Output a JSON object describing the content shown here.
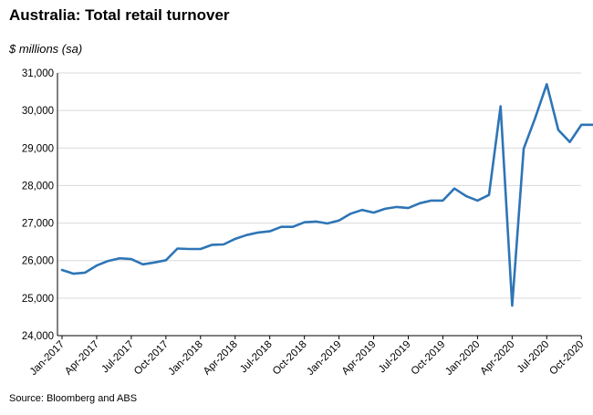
{
  "title": "Australia: Total retail turnover",
  "subtitle": "$ millions (sa)",
  "source": "Source: Bloomberg and ABS",
  "colors": {
    "line": "#2e75b6",
    "grid": "#d9d9d9",
    "axis": "#000000"
  },
  "chart_data": {
    "type": "line",
    "title": "Australia: Total retail turnover",
    "ylabel": "$ millions (sa)",
    "xlabel": "",
    "ylim": [
      24000,
      31000
    ],
    "yticks": [
      24000,
      25000,
      26000,
      27000,
      28000,
      29000,
      30000,
      31000
    ],
    "ytick_labels": [
      "24,000",
      "25,000",
      "26,000",
      "27,000",
      "28,000",
      "29,000",
      "30,000",
      "31,000"
    ],
    "x_tick_labels": [
      "Jan-2017",
      "Apr-2017",
      "Jul-2017",
      "Oct-2017",
      "Jan-2018",
      "Apr-2018",
      "Jul-2018",
      "Oct-2018",
      "Jan-2019",
      "Apr-2019",
      "Jul-2019",
      "Oct-2019",
      "Jan-2020",
      "Apr-2020",
      "Jul-2020",
      "Oct-2020"
    ],
    "grid": true,
    "legend": "none",
    "series": [
      {
        "x": [
          "Jan-2017",
          "Feb-2017",
          "Mar-2017",
          "Apr-2017",
          "May-2017",
          "Jun-2017",
          "Jul-2017",
          "Aug-2017",
          "Sep-2017",
          "Oct-2017",
          "Nov-2017",
          "Dec-2017",
          "Jan-2018",
          "Feb-2018",
          "Mar-2018",
          "Apr-2018",
          "May-2018",
          "Jun-2018",
          "Jul-2018",
          "Aug-2018",
          "Sep-2018",
          "Oct-2018",
          "Nov-2018",
          "Dec-2018",
          "Jan-2019",
          "Feb-2019",
          "Mar-2019",
          "Apr-2019",
          "May-2019",
          "Jun-2019",
          "Jul-2019",
          "Aug-2019",
          "Sep-2019",
          "Oct-2019",
          "Nov-2019",
          "Dec-2019",
          "Jan-2020",
          "Feb-2020",
          "Mar-2020",
          "Apr-2020",
          "May-2020",
          "Jun-2020",
          "Jul-2020",
          "Aug-2020",
          "Sep-2020",
          "Oct-2020",
          "Nov-2020"
        ],
        "values": [
          25750,
          25650,
          25680,
          25870,
          25990,
          26060,
          26040,
          25900,
          25950,
          26010,
          26320,
          26310,
          26310,
          26420,
          26430,
          26580,
          26680,
          26750,
          26780,
          26900,
          26900,
          27020,
          27040,
          26990,
          27070,
          27250,
          27350,
          27280,
          27380,
          27430,
          27400,
          27530,
          27600,
          27600,
          27920,
          27720,
          27600,
          27750,
          30110,
          24800,
          28980,
          29800,
          30700,
          29480,
          29160,
          29620,
          29620
        ]
      }
    ]
  }
}
